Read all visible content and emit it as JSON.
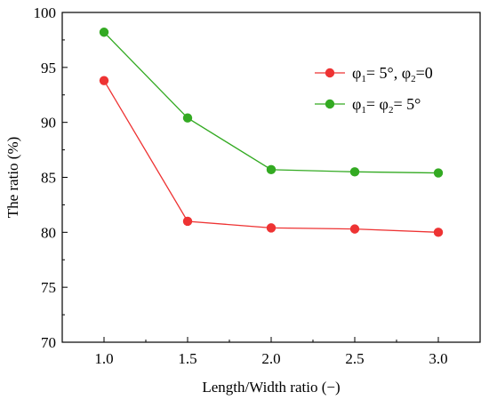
{
  "chart_data": {
    "type": "line",
    "xlabel": "Length/Width ratio (−)",
    "ylabel": "The ratio (%)",
    "x": [
      1.0,
      1.5,
      2.0,
      2.5,
      3.0
    ],
    "x_tick_labels": [
      "1.0",
      "1.5",
      "2.0",
      "2.5",
      "3.0"
    ],
    "xlim": [
      0.75,
      3.25
    ],
    "ylim": [
      70,
      100
    ],
    "y_ticks": [
      70,
      75,
      80,
      85,
      90,
      95,
      100
    ],
    "y_tick_labels": [
      "70",
      "75",
      "80",
      "85",
      "90",
      "95",
      "100"
    ],
    "legend_position": "upper-right",
    "grid": false,
    "series": [
      {
        "name": "φ₁= 5°, φ₂=0",
        "legend_parts": [
          "φ",
          "1",
          "= 5°, φ",
          "2",
          "=0"
        ],
        "color": "#ee3333",
        "values": [
          93.8,
          81.0,
          80.4,
          80.3,
          80.0
        ]
      },
      {
        "name": "φ₁= φ₂= 5°",
        "legend_parts": [
          "φ",
          "1",
          "= φ",
          "2",
          "= 5°"
        ],
        "color": "#33aa22",
        "values": [
          98.2,
          90.4,
          85.7,
          85.5,
          85.4
        ]
      }
    ]
  }
}
